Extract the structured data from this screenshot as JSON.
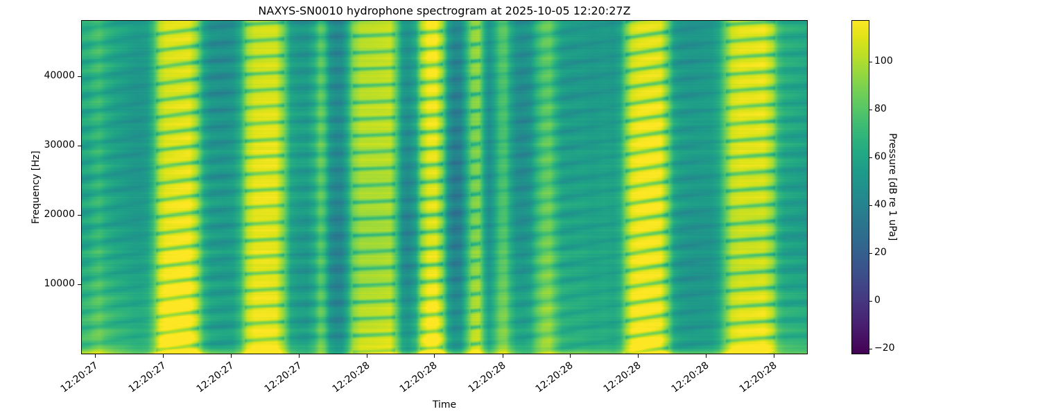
{
  "chart_data": {
    "type": "heatmap",
    "subtype": "spectrogram",
    "title": "NAXYS-SN0010 hydrophone spectrogram at 2025-10-05 12:20:27Z",
    "xlabel": "Time",
    "ylabel": "Frequency [Hz]",
    "x_tick_labels": [
      "12:20:27",
      "12:20:27",
      "12:20:27",
      "12:20:27",
      "12:20:28",
      "12:20:28",
      "12:20:28",
      "12:20:28",
      "12:20:28",
      "12:20:28",
      "12:20:28"
    ],
    "x_tick_positions": [
      0.018,
      0.112,
      0.206,
      0.299,
      0.393,
      0.486,
      0.58,
      0.673,
      0.767,
      0.86,
      0.954
    ],
    "y_tick_values": [
      40000,
      30000,
      20000,
      10000
    ],
    "y_tick_labels": [
      "40000",
      "30000",
      "20000",
      "10000"
    ],
    "y_range_hz": [
      0,
      48000
    ],
    "grid": false,
    "colorbar": {
      "label": "Pressure [dB re 1 uPa]",
      "tick_values": [
        100,
        80,
        60,
        40,
        20,
        0,
        -20
      ],
      "tick_labels": [
        "100",
        "80",
        "60",
        "40",
        "20",
        "0",
        "−20"
      ],
      "vmin": -22,
      "vmax": 117,
      "colormap": "viridis",
      "position": "right"
    },
    "colormap_stops": [
      [
        0.0,
        68,
        1,
        84
      ],
      [
        0.05,
        71,
        18,
        101
      ],
      [
        0.1,
        72,
        36,
        117
      ],
      [
        0.15,
        70,
        52,
        127
      ],
      [
        0.2,
        65,
        68,
        135
      ],
      [
        0.25,
        59,
        82,
        139
      ],
      [
        0.3,
        53,
        95,
        141
      ],
      [
        0.35,
        47,
        108,
        142
      ],
      [
        0.4,
        42,
        120,
        142
      ],
      [
        0.45,
        37,
        132,
        142
      ],
      [
        0.5,
        33,
        145,
        140
      ],
      [
        0.55,
        30,
        156,
        137
      ],
      [
        0.6,
        34,
        168,
        132
      ],
      [
        0.65,
        47,
        180,
        124
      ],
      [
        0.7,
        68,
        190,
        112
      ],
      [
        0.75,
        94,
        201,
        98
      ],
      [
        0.8,
        122,
        209,
        81
      ],
      [
        0.85,
        155,
        217,
        60
      ],
      [
        0.9,
        189,
        223,
        38
      ],
      [
        0.95,
        223,
        227,
        24
      ],
      [
        1.0,
        253,
        231,
        37
      ]
    ],
    "time_envelope_db": [
      [
        0.0,
        63
      ],
      [
        0.008,
        64
      ],
      [
        0.016,
        70
      ],
      [
        0.024,
        73
      ],
      [
        0.032,
        66
      ],
      [
        0.045,
        60
      ],
      [
        0.06,
        57
      ],
      [
        0.072,
        54
      ],
      [
        0.082,
        54
      ],
      [
        0.09,
        57
      ],
      [
        0.098,
        72
      ],
      [
        0.107,
        103
      ],
      [
        0.115,
        111
      ],
      [
        0.13,
        112
      ],
      [
        0.148,
        112
      ],
      [
        0.158,
        96
      ],
      [
        0.168,
        62
      ],
      [
        0.178,
        52
      ],
      [
        0.195,
        50
      ],
      [
        0.208,
        52
      ],
      [
        0.218,
        65
      ],
      [
        0.228,
        100
      ],
      [
        0.238,
        109
      ],
      [
        0.255,
        110
      ],
      [
        0.268,
        109
      ],
      [
        0.278,
        88
      ],
      [
        0.288,
        58
      ],
      [
        0.298,
        53
      ],
      [
        0.31,
        52
      ],
      [
        0.32,
        62
      ],
      [
        0.328,
        80
      ],
      [
        0.334,
        74
      ],
      [
        0.342,
        48
      ],
      [
        0.35,
        42
      ],
      [
        0.358,
        43
      ],
      [
        0.366,
        60
      ],
      [
        0.374,
        88
      ],
      [
        0.384,
        99
      ],
      [
        0.398,
        100
      ],
      [
        0.412,
        101
      ],
      [
        0.425,
        102
      ],
      [
        0.434,
        78
      ],
      [
        0.442,
        50
      ],
      [
        0.45,
        46
      ],
      [
        0.46,
        58
      ],
      [
        0.468,
        95
      ],
      [
        0.477,
        111
      ],
      [
        0.488,
        112
      ],
      [
        0.497,
        90
      ],
      [
        0.505,
        52
      ],
      [
        0.513,
        40
      ],
      [
        0.522,
        42
      ],
      [
        0.53,
        65
      ],
      [
        0.538,
        91
      ],
      [
        0.547,
        94
      ],
      [
        0.555,
        62
      ],
      [
        0.561,
        49
      ],
      [
        0.568,
        60
      ],
      [
        0.576,
        78
      ],
      [
        0.584,
        80
      ],
      [
        0.591,
        62
      ],
      [
        0.599,
        50
      ],
      [
        0.608,
        48
      ],
      [
        0.618,
        52
      ],
      [
        0.627,
        70
      ],
      [
        0.636,
        82
      ],
      [
        0.645,
        84
      ],
      [
        0.653,
        70
      ],
      [
        0.662,
        58
      ],
      [
        0.675,
        56
      ],
      [
        0.69,
        57
      ],
      [
        0.705,
        55
      ],
      [
        0.72,
        57
      ],
      [
        0.733,
        55
      ],
      [
        0.742,
        62
      ],
      [
        0.75,
        88
      ],
      [
        0.758,
        108
      ],
      [
        0.768,
        112
      ],
      [
        0.785,
        112
      ],
      [
        0.798,
        110
      ],
      [
        0.808,
        85
      ],
      [
        0.816,
        58
      ],
      [
        0.825,
        52
      ],
      [
        0.84,
        50
      ],
      [
        0.855,
        51
      ],
      [
        0.868,
        52
      ],
      [
        0.878,
        60
      ],
      [
        0.888,
        85
      ],
      [
        0.896,
        104
      ],
      [
        0.908,
        108
      ],
      [
        0.925,
        107
      ],
      [
        0.94,
        108
      ],
      [
        0.952,
        95
      ],
      [
        0.96,
        70
      ],
      [
        0.968,
        62
      ],
      [
        0.98,
        60
      ],
      [
        0.99,
        59
      ],
      [
        1.0,
        58
      ]
    ],
    "texture": {
      "comb_period_hz": 2400,
      "comb_amplitude_db": 5.5,
      "notch_depth_bright_db": 24,
      "notch_depth_dim_db": 4,
      "striation_amplitude_db": 3,
      "low_freq_boost_db": 26
    }
  }
}
